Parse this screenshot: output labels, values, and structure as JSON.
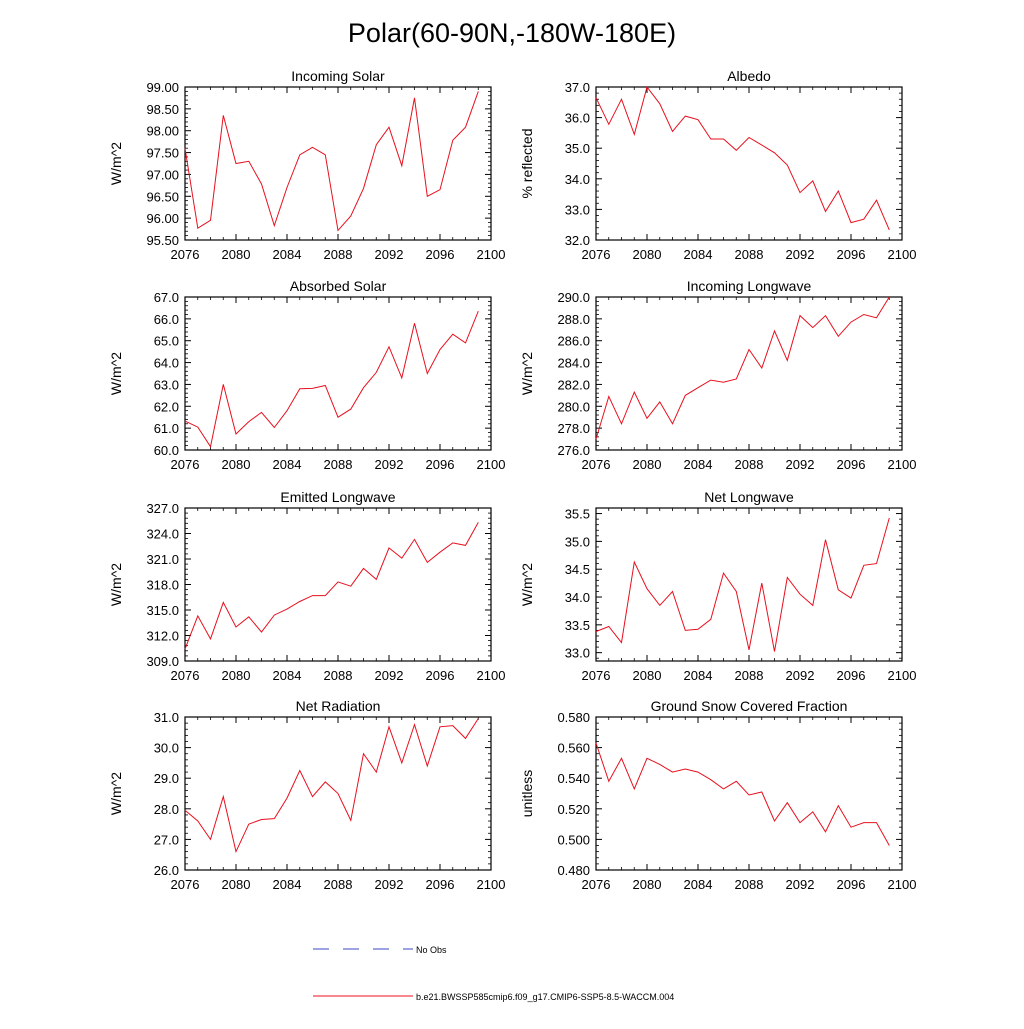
{
  "page_title": "Polar(60-90N,-180W-180E)",
  "colors": {
    "series": "#e8101e",
    "no_obs": "#3b45c2",
    "axis": "#000000"
  },
  "legend": {
    "no_obs_label": "No Obs",
    "series_label": "b.e21.BWSSP585cmip6.f09_g17.CMIP6-SSP5-8.5-WACCM.004"
  },
  "chart_data": [
    {
      "type": "line",
      "title": "Incoming Solar",
      "xlabel": "",
      "ylabel": "W/m^2",
      "xlim": [
        2076,
        2100
      ],
      "xticks": [
        2076,
        2080,
        2084,
        2088,
        2092,
        2096,
        2100
      ],
      "ylim": [
        95.5,
        99.0
      ],
      "yticks": [
        95.5,
        96.0,
        96.5,
        97.0,
        97.5,
        98.0,
        98.5,
        99.0
      ],
      "ydec": 2,
      "x": [
        2076,
        2077,
        2078,
        2079,
        2080,
        2081,
        2082,
        2083,
        2084,
        2085,
        2086,
        2087,
        2088,
        2089,
        2090,
        2091,
        2092,
        2093,
        2094,
        2095,
        2096,
        2097,
        2098,
        2099
      ],
      "y": [
        97.6,
        95.77,
        95.95,
        98.35,
        97.25,
        97.3,
        96.78,
        95.83,
        96.7,
        97.45,
        97.62,
        97.45,
        95.72,
        96.05,
        96.68,
        97.68,
        98.08,
        97.2,
        98.75,
        96.5,
        96.65,
        97.78,
        98.08,
        98.9
      ]
    },
    {
      "type": "line",
      "title": "Albedo",
      "xlabel": "",
      "ylabel": "% reflected",
      "xlim": [
        2076,
        2100
      ],
      "xticks": [
        2076,
        2080,
        2084,
        2088,
        2092,
        2096,
        2100
      ],
      "ylim": [
        32.0,
        37.0
      ],
      "yticks": [
        32.0,
        33.0,
        34.0,
        35.0,
        36.0,
        37.0
      ],
      "ydec": 1,
      "x": [
        2076,
        2077,
        2078,
        2079,
        2080,
        2081,
        2082,
        2083,
        2084,
        2085,
        2086,
        2087,
        2088,
        2089,
        2090,
        2091,
        2092,
        2093,
        2094,
        2095,
        2096,
        2097,
        2098,
        2099
      ],
      "y": [
        36.65,
        35.78,
        36.6,
        35.45,
        37.0,
        36.45,
        35.55,
        36.05,
        35.93,
        35.3,
        35.3,
        34.93,
        35.35,
        35.1,
        34.85,
        34.45,
        33.55,
        33.93,
        32.93,
        33.6,
        32.57,
        32.68,
        33.3,
        32.33
      ]
    },
    {
      "type": "line",
      "title": "Absorbed Solar",
      "xlabel": "",
      "ylabel": "W/m^2",
      "xlim": [
        2076,
        2100
      ],
      "xticks": [
        2076,
        2080,
        2084,
        2088,
        2092,
        2096,
        2100
      ],
      "ylim": [
        60.0,
        67.0
      ],
      "yticks": [
        60.0,
        61.0,
        62.0,
        63.0,
        64.0,
        65.0,
        66.0,
        67.0
      ],
      "ydec": 1,
      "x": [
        2076,
        2077,
        2078,
        2079,
        2080,
        2081,
        2082,
        2083,
        2084,
        2085,
        2086,
        2087,
        2088,
        2089,
        2090,
        2091,
        2092,
        2093,
        2094,
        2095,
        2096,
        2097,
        2098,
        2099
      ],
      "y": [
        61.32,
        61.05,
        60.15,
        63.0,
        60.73,
        61.3,
        61.72,
        61.03,
        61.8,
        62.8,
        62.82,
        62.95,
        61.5,
        61.87,
        62.85,
        63.55,
        64.72,
        63.3,
        65.8,
        63.5,
        64.6,
        65.3,
        64.9,
        66.35
      ]
    },
    {
      "type": "line",
      "title": "Incoming Longwave",
      "xlabel": "",
      "ylabel": "W/m^2",
      "xlim": [
        2076,
        2100
      ],
      "xticks": [
        2076,
        2080,
        2084,
        2088,
        2092,
        2096,
        2100
      ],
      "ylim": [
        276.0,
        290.0
      ],
      "yticks": [
        276.0,
        278.0,
        280.0,
        282.0,
        284.0,
        286.0,
        288.0,
        290.0
      ],
      "ydec": 1,
      "x": [
        2076,
        2077,
        2078,
        2079,
        2080,
        2081,
        2082,
        2083,
        2084,
        2085,
        2086,
        2087,
        2088,
        2089,
        2090,
        2091,
        2092,
        2093,
        2094,
        2095,
        2096,
        2097,
        2098,
        2099
      ],
      "y": [
        277.0,
        280.9,
        278.4,
        281.3,
        278.9,
        280.4,
        278.4,
        281.0,
        281.7,
        282.4,
        282.2,
        282.5,
        285.2,
        283.5,
        286.9,
        284.2,
        288.3,
        287.2,
        288.3,
        286.4,
        287.7,
        288.4,
        288.1,
        290.0
      ]
    },
    {
      "type": "line",
      "title": "Emitted Longwave",
      "xlabel": "",
      "ylabel": "W/m^2",
      "xlim": [
        2076,
        2100
      ],
      "xticks": [
        2076,
        2080,
        2084,
        2088,
        2092,
        2096,
        2100
      ],
      "ylim": [
        309.0,
        327.0
      ],
      "yticks": [
        309.0,
        312.0,
        315.0,
        318.0,
        321.0,
        324.0,
        327.0
      ],
      "ydec": 1,
      "x": [
        2076,
        2077,
        2078,
        2079,
        2080,
        2081,
        2082,
        2083,
        2084,
        2085,
        2086,
        2087,
        2088,
        2089,
        2090,
        2091,
        2092,
        2093,
        2094,
        2095,
        2096,
        2097,
        2098,
        2099
      ],
      "y": [
        310.4,
        314.3,
        311.6,
        315.9,
        313.0,
        314.2,
        312.4,
        314.4,
        315.1,
        316.0,
        316.7,
        316.7,
        318.3,
        317.8,
        319.9,
        318.6,
        322.3,
        321.1,
        323.3,
        320.6,
        321.8,
        322.9,
        322.6,
        325.3
      ]
    },
    {
      "type": "line",
      "title": "Net Longwave",
      "xlabel": "",
      "ylabel": "W/m^2",
      "xlim": [
        2076,
        2100
      ],
      "xticks": [
        2076,
        2080,
        2084,
        2088,
        2092,
        2096,
        2100
      ],
      "ylim": [
        32.85,
        35.6
      ],
      "yticks": [
        33.0,
        33.5,
        34.0,
        34.5,
        35.0,
        35.5
      ],
      "ydec": 1,
      "x": [
        2076,
        2077,
        2078,
        2079,
        2080,
        2081,
        2082,
        2083,
        2084,
        2085,
        2086,
        2087,
        2088,
        2089,
        2090,
        2091,
        2092,
        2093,
        2094,
        2095,
        2096,
        2097,
        2098,
        2099
      ],
      "y": [
        33.38,
        33.47,
        33.18,
        34.63,
        34.15,
        33.85,
        34.1,
        33.4,
        33.42,
        33.6,
        34.43,
        34.1,
        33.05,
        34.25,
        33.02,
        34.35,
        34.05,
        33.85,
        35.03,
        34.13,
        33.98,
        34.57,
        34.6,
        35.42
      ]
    },
    {
      "type": "line",
      "title": "Net Radiation",
      "xlabel": "",
      "ylabel": "W/m^2",
      "xlim": [
        2076,
        2100
      ],
      "xticks": [
        2076,
        2080,
        2084,
        2088,
        2092,
        2096,
        2100
      ],
      "ylim": [
        26.0,
        31.0
      ],
      "yticks": [
        26.0,
        27.0,
        28.0,
        29.0,
        30.0,
        31.0
      ],
      "ydec": 1,
      "x": [
        2076,
        2077,
        2078,
        2079,
        2080,
        2081,
        2082,
        2083,
        2084,
        2085,
        2086,
        2087,
        2088,
        2089,
        2090,
        2091,
        2092,
        2093,
        2094,
        2095,
        2096,
        2097,
        2098,
        2099
      ],
      "y": [
        27.95,
        27.6,
        27.0,
        28.4,
        26.6,
        27.5,
        27.65,
        27.68,
        28.35,
        29.25,
        28.4,
        28.88,
        28.5,
        27.62,
        29.8,
        29.2,
        30.68,
        29.5,
        30.75,
        29.4,
        30.68,
        30.72,
        30.3,
        30.95
      ]
    },
    {
      "type": "line",
      "title": "Ground Snow Covered Fraction",
      "xlabel": "",
      "ylabel": "unitless",
      "xlim": [
        2076,
        2100
      ],
      "xticks": [
        2076,
        2080,
        2084,
        2088,
        2092,
        2096,
        2100
      ],
      "ylim": [
        0.48,
        0.58
      ],
      "yticks": [
        0.48,
        0.5,
        0.52,
        0.54,
        0.56,
        0.58
      ],
      "ydec": 3,
      "x": [
        2076,
        2077,
        2078,
        2079,
        2080,
        2081,
        2082,
        2083,
        2084,
        2085,
        2086,
        2087,
        2088,
        2089,
        2090,
        2091,
        2092,
        2093,
        2094,
        2095,
        2096,
        2097,
        2098,
        2099
      ],
      "y": [
        0.563,
        0.538,
        0.553,
        0.533,
        0.553,
        0.549,
        0.544,
        0.546,
        0.544,
        0.539,
        0.533,
        0.538,
        0.529,
        0.531,
        0.512,
        0.524,
        0.511,
        0.518,
        0.505,
        0.522,
        0.508,
        0.511,
        0.511,
        0.496
      ]
    }
  ]
}
